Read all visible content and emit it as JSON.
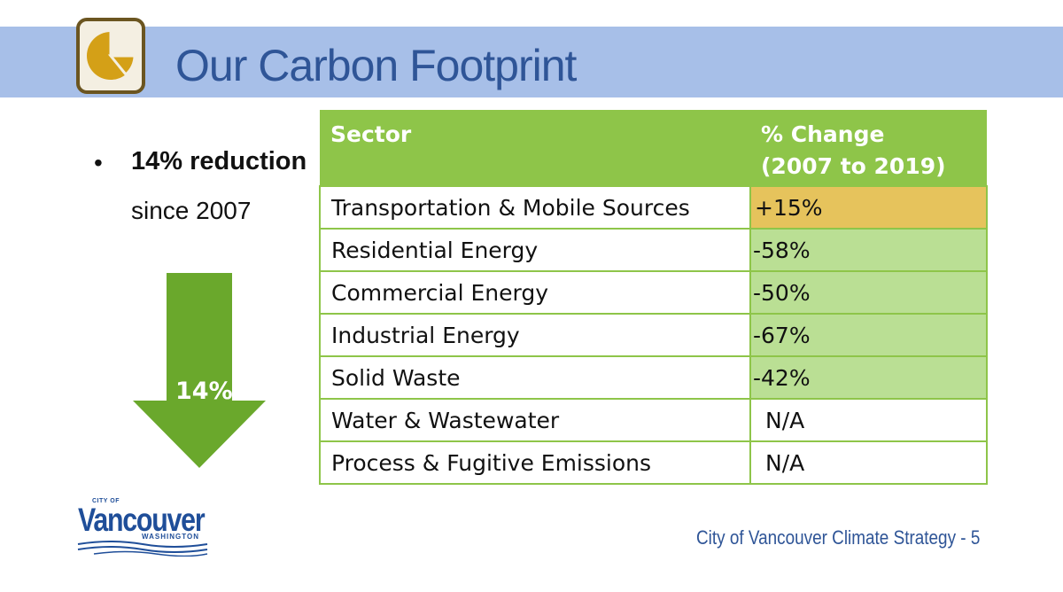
{
  "title": "Our Carbon Footprint",
  "bullet": {
    "headline": "14% reduction",
    "sub": "since 2007"
  },
  "arrow": {
    "label": "14%",
    "color": "#6aa82c"
  },
  "table": {
    "headers": [
      "Sector",
      "% Change",
      "(2007 to 2019)"
    ],
    "rows": [
      {
        "sector": "Transportation & Mobile Sources",
        "change": "+15%"
      },
      {
        "sector": "Residential Energy",
        "change": "-58%"
      },
      {
        "sector": "Commercial Energy",
        "change": "-50%"
      },
      {
        "sector": "Industrial Energy",
        "change": "-67%"
      },
      {
        "sector": "Solid Waste",
        "change": "-42%"
      },
      {
        "sector": "Water & Wastewater",
        "change": "N/A"
      },
      {
        "sector": "Process & Fugitive Emissions",
        "change": "N/A"
      }
    ],
    "colors": {
      "header": "#8ec549",
      "increase": "#e6c35c",
      "decrease": "#badf94"
    }
  },
  "logo": {
    "top_text": "CITY OF",
    "word": "Vancouver",
    "sub": "WASHINGTON"
  },
  "footer": "City of Vancouver Climate Strategy - 5",
  "icons": {
    "title": "pie-chart-icon",
    "arrow": "down-arrow-icon"
  }
}
